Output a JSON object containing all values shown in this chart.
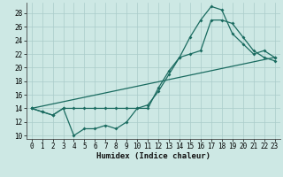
{
  "xlabel": "Humidex (Indice chaleur)",
  "bg_color": "#cde8e4",
  "grid_color": "#aaccca",
  "line_color": "#1a6b60",
  "xlim": [
    -0.5,
    23.5
  ],
  "ylim": [
    9.5,
    29.5
  ],
  "yticks": [
    10,
    12,
    14,
    16,
    18,
    20,
    22,
    24,
    26,
    28
  ],
  "xticks": [
    0,
    1,
    2,
    3,
    4,
    5,
    6,
    7,
    8,
    9,
    10,
    11,
    12,
    13,
    14,
    15,
    16,
    17,
    18,
    19,
    20,
    21,
    22,
    23
  ],
  "line1_x": [
    0,
    1,
    2,
    3,
    4,
    5,
    6,
    7,
    8,
    9,
    10,
    11,
    12,
    13,
    14,
    15,
    16,
    17,
    18,
    19,
    20,
    21,
    22,
    23
  ],
  "line1_y": [
    14.0,
    13.5,
    13.0,
    14.0,
    10.0,
    11.0,
    11.0,
    11.5,
    11.0,
    12.0,
    14.0,
    14.0,
    17.0,
    19.5,
    21.5,
    22.0,
    22.5,
    27.0,
    27.0,
    26.5,
    24.5,
    22.5,
    21.5,
    21.0
  ],
  "line2_x": [
    0,
    1,
    2,
    3,
    4,
    5,
    6,
    7,
    8,
    9,
    10,
    11,
    12,
    13,
    14,
    15,
    16,
    17,
    18,
    19,
    20,
    21,
    22,
    23
  ],
  "line2_y": [
    14.0,
    13.5,
    13.0,
    14.0,
    14.0,
    14.0,
    14.0,
    14.0,
    14.0,
    14.0,
    14.0,
    14.5,
    16.5,
    19.0,
    21.5,
    24.5,
    27.0,
    29.0,
    28.5,
    25.0,
    23.5,
    22.0,
    22.5,
    21.5
  ],
  "line3_x": [
    0,
    23
  ],
  "line3_y": [
    14.0,
    21.5
  ]
}
